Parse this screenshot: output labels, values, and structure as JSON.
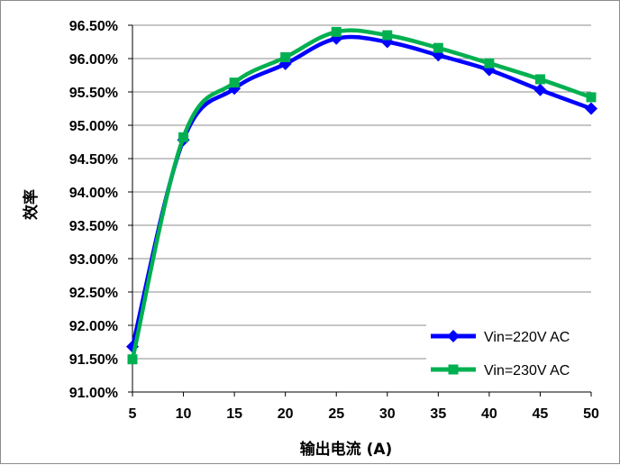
{
  "chart_data": {
    "type": "line",
    "xlabel": "输出电流 (A)",
    "ylabel": "效率",
    "x": [
      5,
      10,
      15,
      20,
      25,
      30,
      35,
      40,
      45,
      50
    ],
    "ylim": [
      91.0,
      96.5
    ],
    "y_ticks": [
      "91.00%",
      "91.50%",
      "92.00%",
      "92.50%",
      "93.00%",
      "93.50%",
      "94.00%",
      "94.50%",
      "95.00%",
      "95.50%",
      "96.00%",
      "96.50%"
    ],
    "x_ticks": [
      "5",
      "10",
      "15",
      "20",
      "25",
      "30",
      "35",
      "40",
      "45",
      "50"
    ],
    "grid": "horizontal",
    "legend_position": "bottom-right",
    "series": [
      {
        "name": "Vin=220V AC",
        "color": "#0000ff",
        "marker": "diamond",
        "values": [
          91.68,
          94.78,
          95.55,
          95.92,
          96.3,
          96.25,
          96.05,
          95.83,
          95.53,
          95.25
        ]
      },
      {
        "name": "Vin=230V AC",
        "color": "#00b050",
        "marker": "square",
        "values": [
          91.49,
          94.82,
          95.64,
          96.02,
          96.4,
          96.35,
          96.16,
          95.93,
          95.69,
          95.42
        ]
      }
    ]
  }
}
